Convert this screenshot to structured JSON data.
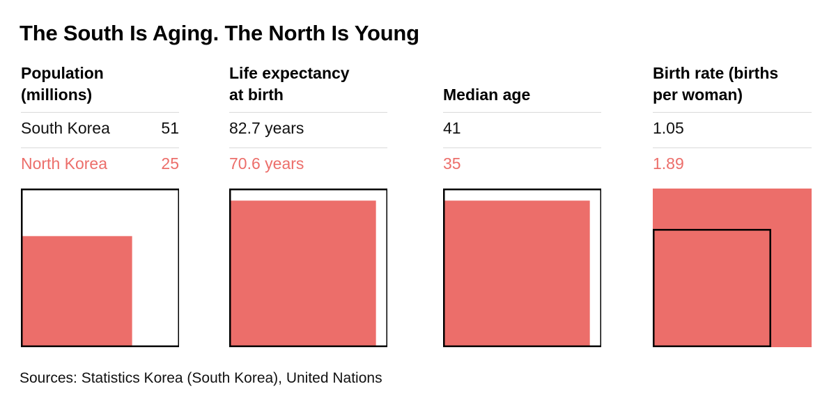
{
  "title": "The South Is Aging. The North Is Young",
  "source": "Sources: Statistics Korea (South Korea), United Nations",
  "colors": {
    "south": "#000000",
    "north": "#ec6e6a"
  },
  "chart_data": {
    "type": "table",
    "countries": [
      "South Korea",
      "North Korea"
    ],
    "metrics": [
      {
        "id": "population",
        "header_line1": "Population",
        "header_line2": "(millions)",
        "south": 51,
        "north": 25,
        "south_text": "51",
        "north_text": "25"
      },
      {
        "id": "life_expectancy",
        "header_line1": "Life expectancy",
        "header_line2": "at birth",
        "south": 82.7,
        "north": 70.6,
        "south_text": "82.7 years",
        "north_text": "70.6 years"
      },
      {
        "id": "median_age",
        "header_line1": "",
        "header_line2": "Median age",
        "south": 41,
        "north": 35,
        "south_text": "41",
        "north_text": "35"
      },
      {
        "id": "birth_rate",
        "header_line1": "Birth rate (births",
        "header_line2": "per woman)",
        "south": 1.05,
        "north": 1.89,
        "south_text": "1.05",
        "north_text": "1.89"
      }
    ]
  }
}
